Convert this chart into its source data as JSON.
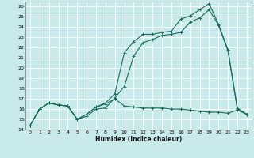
{
  "xlabel": "Humidex (Indice chaleur)",
  "bg_color": "#c8eaea",
  "grid_color": "#b8d8d8",
  "line_color": "#1a6b5a",
  "xlim": [
    -0.5,
    23.5
  ],
  "ylim": [
    14,
    26.5
  ],
  "yticks": [
    14,
    15,
    16,
    17,
    18,
    19,
    20,
    21,
    22,
    23,
    24,
    25,
    26
  ],
  "xticks": [
    0,
    1,
    2,
    3,
    4,
    5,
    6,
    7,
    8,
    9,
    10,
    11,
    12,
    13,
    14,
    15,
    16,
    17,
    18,
    19,
    20,
    21,
    22,
    23
  ],
  "line1_x": [
    0,
    1,
    2,
    3,
    4,
    5,
    6,
    7,
    8,
    9,
    10,
    11,
    12,
    13,
    14,
    15,
    16,
    17,
    18,
    19,
    20,
    21,
    22,
    23
  ],
  "line1_y": [
    14.4,
    16.0,
    16.6,
    16.4,
    16.3,
    15.0,
    15.3,
    16.0,
    16.1,
    17.1,
    18.2,
    21.2,
    22.5,
    22.8,
    23.2,
    23.3,
    23.5,
    24.5,
    24.9,
    25.7,
    24.2,
    21.7,
    16.0,
    15.5
  ],
  "line2_x": [
    0,
    1,
    2,
    3,
    4,
    5,
    6,
    7,
    8,
    9,
    10,
    11,
    12,
    13,
    14,
    15,
    16,
    17,
    18,
    19,
    20,
    21,
    22,
    23
  ],
  "line2_y": [
    14.4,
    16.0,
    16.6,
    16.4,
    16.3,
    15.0,
    15.5,
    16.2,
    16.6,
    17.5,
    21.5,
    22.6,
    23.3,
    23.3,
    23.5,
    23.6,
    24.8,
    25.1,
    25.7,
    26.3,
    24.3,
    21.8,
    16.1,
    15.5
  ],
  "line3_x": [
    0,
    1,
    2,
    3,
    4,
    5,
    6,
    7,
    8,
    9,
    10,
    11,
    12,
    13,
    14,
    15,
    16,
    17,
    18,
    19,
    20,
    21,
    22,
    23
  ],
  "line3_y": [
    14.4,
    16.0,
    16.6,
    16.4,
    16.3,
    15.0,
    15.5,
    16.2,
    16.5,
    17.0,
    16.3,
    16.2,
    16.1,
    16.1,
    16.1,
    16.0,
    16.0,
    15.9,
    15.8,
    15.7,
    15.7,
    15.6,
    15.9,
    15.5
  ]
}
